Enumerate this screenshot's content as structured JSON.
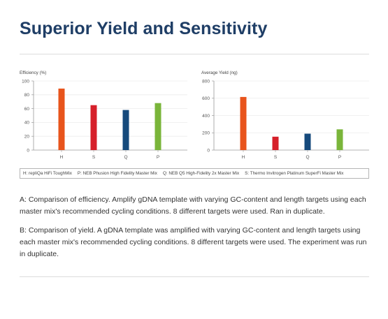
{
  "page": {
    "title": "Superior Yield and Sensitivity",
    "legend": [
      "H: repliQa HiFi ToughMix",
      "P: NEB Phusion High Fidelity Master Mix",
      "Q: NEB Q5 High-Fidelity 2x Master Mix",
      "S: Thermo Invitrogen Platinum SuperFi Master Mix"
    ],
    "caption_a": "A: Comparison of efficiency. Amplify gDNA template with varying GC-content and length targets using each master mix's recommended cycling conditions. 8 different targets were used. Ran in duplicate.",
    "caption_b": "B: Comparison of yield. A gDNA template was amplified with varying GC-content and length targets using each master mix's recommended cycling conditions. 8 different targets were used. The experiment was run in duplicate."
  },
  "chart_data": [
    {
      "type": "bar",
      "ylabel": "Efficiency (%)",
      "categories": [
        "H",
        "S",
        "Q",
        "P"
      ],
      "values": [
        89,
        65,
        58,
        68
      ],
      "ylim": [
        0,
        100
      ],
      "yticks": [
        0,
        20,
        40,
        60,
        80,
        100
      ],
      "colors": [
        "#e8541c",
        "#d6202a",
        "#164a7c",
        "#7ab53a"
      ],
      "grid": true
    },
    {
      "type": "bar",
      "ylabel": "Average Yield (ng)",
      "categories": [
        "H",
        "S",
        "Q",
        "P"
      ],
      "values": [
        615,
        155,
        190,
        240
      ],
      "ylim": [
        0,
        800
      ],
      "yticks": [
        0,
        200,
        400,
        600,
        800
      ],
      "colors": [
        "#e8541c",
        "#d6202a",
        "#164a7c",
        "#7ab53a"
      ],
      "grid": true
    }
  ]
}
